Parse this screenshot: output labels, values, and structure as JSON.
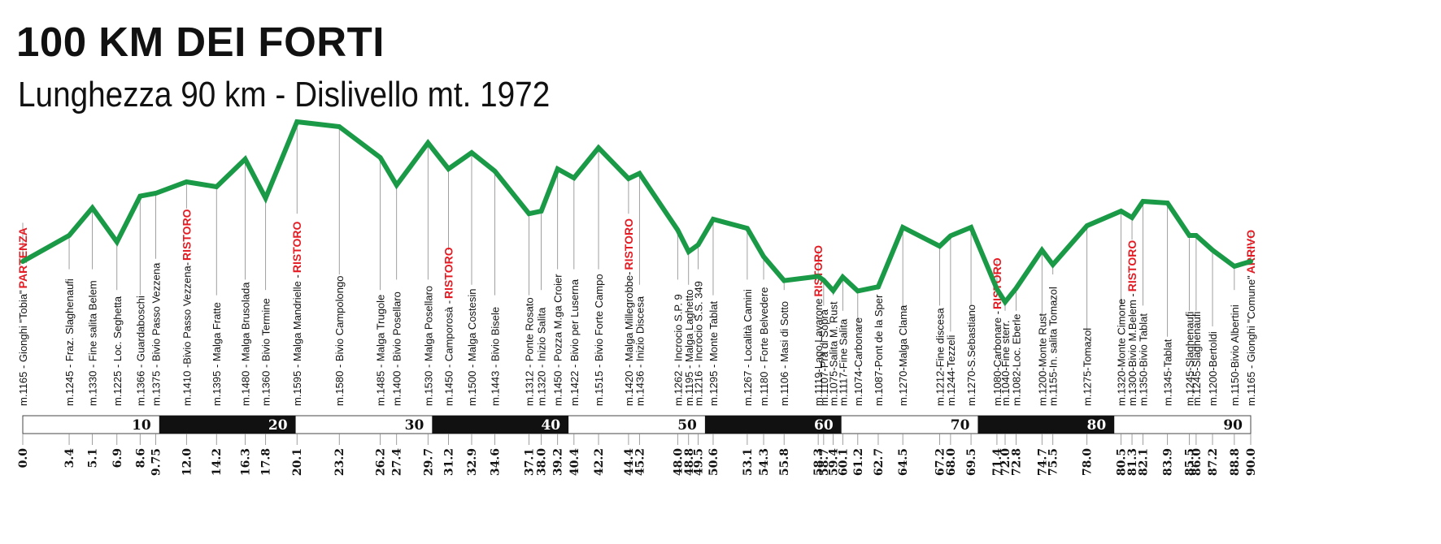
{
  "header": {
    "title": "100 KM DEI FORTI",
    "subtitle": "Lunghezza 90 km - Dislivello mt. 1972"
  },
  "chart_data": {
    "type": "line",
    "title": "100 KM DEI FORTI",
    "subtitle": "Lunghezza 90 km - Dislivello mt. 1972",
    "xlim": [
      0,
      90
    ],
    "ylim": [
      1040,
      1595
    ],
    "line_color": "#1a9a46",
    "ristoro_color": "#e41b23",
    "band_dark": "#111111",
    "band_light": "#ffffff",
    "band_labels": [
      "10",
      "20",
      "30",
      "40",
      "50",
      "60",
      "70",
      "80",
      "90"
    ],
    "ristoro_label": "RISTORO",
    "points": [
      {
        "tick": "0.0",
        "x": 0.0,
        "elev": 1165,
        "label": "m.1165 - Gionghi \"Tobia\"",
        "marker": "PARTENZA"
      },
      {
        "tick": "3.4",
        "x": 3.4,
        "elev": 1245,
        "label": "m.1245 - Fraz. Slaghenaufi"
      },
      {
        "tick": "5.1",
        "x": 5.1,
        "elev": 1330,
        "label": "m.1330 - Fine salita Belem"
      },
      {
        "tick": "6.9",
        "x": 6.9,
        "elev": 1225,
        "label": "m.1225 - Loc. Seghetta"
      },
      {
        "tick": "8.6",
        "x": 8.6,
        "elev": 1366,
        "label": "m.1366 - Guardaboschi"
      },
      {
        "tick": "9.75",
        "x": 9.75,
        "elev": 1375,
        "label": "m.1375 - Bivio Passo Vezzena"
      },
      {
        "tick": "12.0",
        "x": 12.0,
        "elev": 1410,
        "label": "m.1410 -Bivio Passo Vezzena-",
        "marker": "RISTORO"
      },
      {
        "tick": "14.2",
        "x": 14.2,
        "elev": 1395,
        "label": "m.1395 - Malga Fratte"
      },
      {
        "tick": "16.3",
        "x": 16.3,
        "elev": 1480,
        "label": "m.1480 - Malga Brusolada"
      },
      {
        "tick": "17.8",
        "x": 17.8,
        "elev": 1360,
        "label": "m.1360 - Bivio Termine"
      },
      {
        "tick": "20.1",
        "x": 20.1,
        "elev": 1595,
        "label": "m.1595 - Malga Mandrielle -",
        "marker": "RISTORO"
      },
      {
        "tick": "23.2",
        "x": 23.2,
        "elev": 1580,
        "label": "m.1580 - Bivio Campolongo"
      },
      {
        "tick": "26.2",
        "x": 26.2,
        "elev": 1485,
        "label": "m.1485 - Malga Trugole"
      },
      {
        "tick": "27.4",
        "x": 27.4,
        "elev": 1400,
        "label": "m.1400 - Bivio Posellaro"
      },
      {
        "tick": "29.7",
        "x": 29.7,
        "elev": 1530,
        "label": "m.1530 - Malga Posellaro"
      },
      {
        "tick": "31.2",
        "x": 31.2,
        "elev": 1450,
        "label": "m.1450 - Camporosà -",
        "marker": "RISTORO"
      },
      {
        "tick": "32.9",
        "x": 32.9,
        "elev": 1500,
        "label": "m.1500 - Malga Costesin"
      },
      {
        "tick": "34.6",
        "x": 34.6,
        "elev": 1443,
        "label": "m.1443 - Bivio Bisele"
      },
      {
        "tick": "37.1",
        "x": 37.1,
        "elev": 1312,
        "label": "m.1312 - Ponte Rosato"
      },
      {
        "tick": "38.0",
        "x": 38.0,
        "elev": 1320,
        "label": "m.1320 - Inizio Salita"
      },
      {
        "tick": "39.2",
        "x": 39.2,
        "elev": 1450,
        "label": "m.1450 - Pozza M.ga Croier"
      },
      {
        "tick": "40.4",
        "x": 40.4,
        "elev": 1422,
        "label": "m.1422 - Bivio per Luserna"
      },
      {
        "tick": "42.2",
        "x": 42.2,
        "elev": 1515,
        "label": "m.1515 - Bivio Forte Campo"
      },
      {
        "tick": "44.4",
        "x": 44.4,
        "elev": 1420,
        "label": "m.1420 - Malga Millegrobbe-",
        "marker": "RISTORO"
      },
      {
        "tick": "45.2",
        "x": 45.2,
        "elev": 1436,
        "label": "m.1436 - Inizio Discesa"
      },
      {
        "tick": "48.0",
        "x": 48.0,
        "elev": 1262,
        "label": "m.1262 - Incrocio S.P. 9"
      },
      {
        "tick": "48.8",
        "x": 48.8,
        "elev": 1195,
        "label": "m.1195 - Malga Laghetto"
      },
      {
        "tick": "49.5",
        "x": 49.5,
        "elev": 1216,
        "label": "m.1216 - Incrocio S.S. 349"
      },
      {
        "tick": "50.6",
        "x": 50.6,
        "elev": 1295,
        "label": "m.1295 - Monte Tablat"
      },
      {
        "tick": "53.1",
        "x": 53.1,
        "elev": 1267,
        "label": "m.1267 - Località Camini"
      },
      {
        "tick": "54.3",
        "x": 54.3,
        "elev": 1180,
        "label": "m.1180 - Forte Belvedere"
      },
      {
        "tick": "55.8",
        "x": 55.8,
        "elev": 1106,
        "label": "m.1106 - Masi di Sotto"
      },
      {
        "tick": "58.3",
        "x": 58.3,
        "elev": 1119,
        "label": "m.1119-Lago Lavarone",
        "marker": "RISTORO"
      },
      {
        "tick": "58.7",
        "x": 58.7,
        "elev": 1107,
        "label": "m.1107-Prà di Sopra"
      },
      {
        "tick": "59.4",
        "x": 59.4,
        "elev": 1075,
        "label": "m.1075-Salita M. Rust"
      },
      {
        "tick": "60.1",
        "x": 60.1,
        "elev": 1117,
        "label": "m.1117-Fine Salita"
      },
      {
        "tick": "61.2",
        "x": 61.2,
        "elev": 1074,
        "label": "m.1074-Carbonare"
      },
      {
        "tick": "62.7",
        "x": 62.7,
        "elev": 1087,
        "label": "m.1087-Pont de la Sper"
      },
      {
        "tick": "64.5",
        "x": 64.5,
        "elev": 1270,
        "label": "m.1270-Malga Clama"
      },
      {
        "tick": "67.2",
        "x": 67.2,
        "elev": 1212,
        "label": "m.1212-Fine discesa"
      },
      {
        "tick": "68.0",
        "x": 68.0,
        "elev": 1244,
        "label": "m.1244-Tezzeli"
      },
      {
        "tick": "69.5",
        "x": 69.5,
        "elev": 1270,
        "label": "m.1270-S.Sebastiano"
      },
      {
        "tick": "71.4",
        "x": 71.4,
        "elev": 1080,
        "label": "m.1080-Carbonare -",
        "marker": "RISTORO"
      },
      {
        "tick": "72.0",
        "x": 72.0,
        "elev": 1040,
        "label": "m.1040-Fine sterr."
      },
      {
        "tick": "72.8",
        "x": 72.8,
        "elev": 1082,
        "label": "m.1082-Loc. Eberle"
      },
      {
        "tick": "74.7",
        "x": 74.7,
        "elev": 1200,
        "label": "m.1200-Monte Rust"
      },
      {
        "tick": "75.5",
        "x": 75.5,
        "elev": 1155,
        "label": "m.1155-In. salita Tomazol"
      },
      {
        "tick": "78.0",
        "x": 78.0,
        "elev": 1275,
        "label": "m.1275-Tomazol"
      },
      {
        "tick": "80.5",
        "x": 80.5,
        "elev": 1320,
        "label": "m.1320-Monte Cimone"
      },
      {
        "tick": "81.3",
        "x": 81.3,
        "elev": 1300,
        "label": "m.1300-Bivio M.Belem -",
        "marker": "RISTORO"
      },
      {
        "tick": "82.1",
        "x": 82.1,
        "elev": 1350,
        "label": "m.1350-Bivio Tablat"
      },
      {
        "tick": "83.9",
        "x": 83.9,
        "elev": 1345,
        "label": "m.1345-Tablat"
      },
      {
        "tick": "85.5",
        "x": 85.5,
        "elev": 1245,
        "label": "m.1245-Slaghenaufi"
      },
      {
        "tick": "86.0",
        "x": 86.0,
        "elev": 1245,
        "label": "m.1245-Slaghenaufi"
      },
      {
        "tick": "87.2",
        "x": 87.2,
        "elev": 1200,
        "label": "m.1200-Bertoldi"
      },
      {
        "tick": "88.8",
        "x": 88.8,
        "elev": 1150,
        "label": "m.1150-Bivio Albertini"
      },
      {
        "tick": "90.0",
        "x": 90.0,
        "elev": 1165,
        "label": "m.1165 - Gionghi \"Comune\"",
        "marker": "ARRIVO"
      }
    ]
  }
}
